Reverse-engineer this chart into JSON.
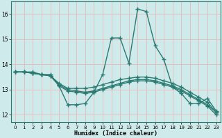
{
  "xlabel": "Humidex (Indice chaleur)",
  "xlim": [
    -0.5,
    23.5
  ],
  "ylim": [
    11.7,
    16.5
  ],
  "yticks": [
    12,
    13,
    14,
    15,
    16
  ],
  "xticks": [
    0,
    1,
    2,
    3,
    4,
    5,
    6,
    7,
    8,
    9,
    10,
    11,
    12,
    13,
    14,
    15,
    16,
    17,
    18,
    19,
    20,
    21,
    22,
    23
  ],
  "bg_color": "#ceeaea",
  "grid_color": "#e8b8b8",
  "line_color": "#2a7a72",
  "line_width": 1.0,
  "marker": "+",
  "marker_size": 4,
  "marker_ew": 1.0,
  "lines": [
    [
      13.7,
      13.7,
      13.7,
      13.6,
      13.6,
      13.15,
      12.4,
      12.4,
      12.45,
      12.9,
      13.6,
      15.05,
      15.05,
      14.05,
      16.2,
      16.1,
      14.75,
      14.2,
      13.1,
      12.85,
      12.45,
      12.45,
      12.65,
      12.15
    ],
    [
      13.7,
      13.7,
      13.65,
      13.6,
      13.55,
      13.25,
      13.05,
      13.05,
      13.05,
      13.1,
      13.2,
      13.3,
      13.4,
      13.45,
      13.5,
      13.5,
      13.45,
      13.35,
      13.25,
      13.1,
      12.9,
      12.7,
      12.5,
      12.1
    ],
    [
      13.7,
      13.7,
      13.65,
      13.6,
      13.55,
      13.2,
      13.0,
      12.95,
      12.9,
      12.95,
      13.05,
      13.15,
      13.25,
      13.35,
      13.4,
      13.4,
      13.35,
      13.25,
      13.15,
      13.0,
      12.8,
      12.6,
      12.4,
      12.1
    ],
    [
      13.7,
      13.7,
      13.65,
      13.6,
      13.55,
      13.15,
      12.95,
      12.9,
      12.85,
      12.9,
      13.0,
      13.1,
      13.2,
      13.3,
      13.35,
      13.35,
      13.3,
      13.2,
      13.1,
      12.95,
      12.75,
      12.55,
      12.35,
      12.0
    ]
  ]
}
